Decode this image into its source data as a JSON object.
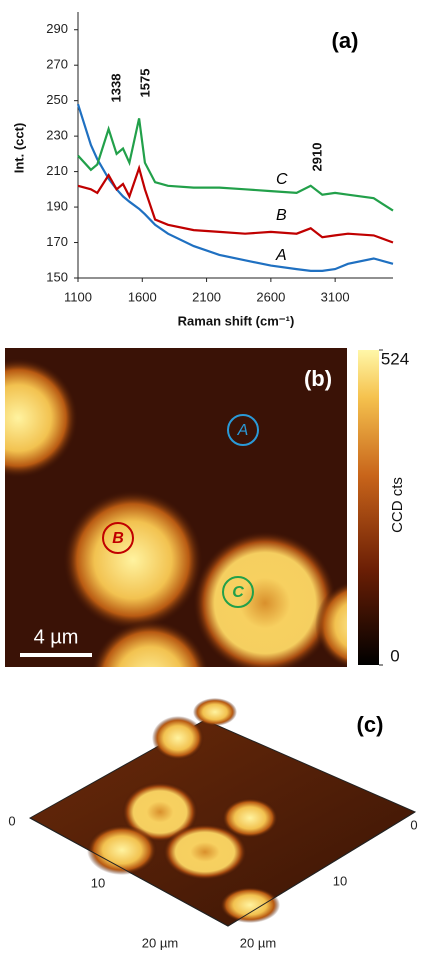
{
  "chart_data": {
    "type": "line",
    "title": "(a)",
    "x_label": "Raman shift (cm⁻¹)",
    "y_label": "Int. (cct)",
    "x": [
      1100,
      1200,
      1250,
      1338,
      1400,
      1450,
      1500,
      1575,
      1620,
      1700,
      1800,
      2000,
      2200,
      2400,
      2600,
      2800,
      2910,
      3000,
      3100,
      3200,
      3400,
      3550
    ],
    "series": [
      {
        "name": "A",
        "color": "#1f70c1",
        "values": [
          248,
          225,
          217,
          206,
          200,
          196,
          193,
          189,
          186,
          180,
          175,
          168,
          163,
          160,
          157,
          155,
          154,
          154,
          155,
          158,
          161,
          158
        ]
      },
      {
        "name": "B",
        "color": "#c00000",
        "values": [
          202,
          200,
          198,
          208,
          200,
          203,
          196,
          212,
          200,
          183,
          180,
          177,
          176,
          175,
          176,
          175,
          178,
          173,
          174,
          175,
          174,
          170
        ]
      },
      {
        "name": "C",
        "color": "#22a04a",
        "values": [
          219,
          211,
          214,
          234,
          220,
          223,
          215,
          240,
          215,
          204,
          202,
          201,
          201,
          200,
          199,
          198,
          202,
          197,
          198,
          197,
          195,
          188
        ]
      }
    ],
    "xlim": [
      1100,
      3550
    ],
    "ylim": [
      150,
      300
    ],
    "xticks": [
      1100,
      1600,
      2100,
      2600,
      3100
    ],
    "yticks": [
      150,
      170,
      190,
      210,
      230,
      250,
      270,
      290
    ],
    "annotations": [
      "1338",
      "1575",
      "2910"
    ]
  },
  "map_panel": {
    "label": "(b)",
    "regions": [
      "A",
      "B",
      "C"
    ],
    "scale_bar": "4 µm",
    "colorbar": {
      "label": "CCD cts",
      "lim": [
        0,
        524
      ],
      "ticks": [
        0,
        524
      ]
    }
  },
  "surface_panel": {
    "label": "(c)",
    "left_axis_ticks": [
      "0",
      "10",
      "20 µm"
    ],
    "right_axis_ticks": [
      "0",
      "10",
      "20 µm"
    ]
  }
}
